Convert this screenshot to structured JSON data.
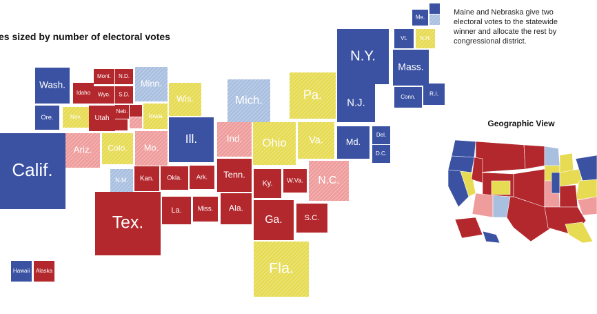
{
  "title": "es sized by number of electoral votes",
  "note": "Maine and Nebraska give two electoral votes to the statewide winner and allocate the rest by congressional district.",
  "inset_title": "Geographic View",
  "states": [
    {
      "label": "Calif.",
      "color": "#3b52a3",
      "hatched": false
    },
    {
      "label": "Wash.",
      "color": "#3b52a3",
      "hatched": false
    },
    {
      "label": "Ore.",
      "color": "#3b52a3",
      "hatched": false
    },
    {
      "label": "Idaho",
      "color": "#b3282d",
      "hatched": false
    },
    {
      "label": "Mont.",
      "color": "#b3282d",
      "hatched": false
    },
    {
      "label": "N.D.",
      "color": "#b3282d",
      "hatched": false
    },
    {
      "label": "Wyo.",
      "color": "#b3282d",
      "hatched": false
    },
    {
      "label": "S.D.",
      "color": "#b3282d",
      "hatched": false
    },
    {
      "label": "Minn.",
      "color": "#a9bfe0",
      "hatched": true
    },
    {
      "label": "Nev.",
      "color": "#e6db52",
      "hatched": true
    },
    {
      "label": "Utah",
      "color": "#b3282d",
      "hatched": false
    },
    {
      "label": "Neb.",
      "color": "#b3282d",
      "hatched": false
    },
    {
      "label": "Iowa",
      "color": "#e6db52",
      "hatched": true
    },
    {
      "label": "Ariz.",
      "color": "#ef9c9c",
      "hatched": true
    },
    {
      "label": "Colo.",
      "color": "#e6db52",
      "hatched": true
    },
    {
      "label": "Mo.",
      "color": "#ef9c9c",
      "hatched": true
    },
    {
      "label": "Wis.",
      "color": "#e6db52",
      "hatched": true
    },
    {
      "label": "Ill.",
      "color": "#3b52a3",
      "hatched": false
    },
    {
      "label": "Mich.",
      "color": "#a9bfe0",
      "hatched": true
    },
    {
      "label": "Ind.",
      "color": "#ef9c9c",
      "hatched": true
    },
    {
      "label": "Ohio",
      "color": "#e6db52",
      "hatched": true
    },
    {
      "label": "Pa.",
      "color": "#e6db52",
      "hatched": true
    },
    {
      "label": "Va.",
      "color": "#e6db52",
      "hatched": true
    },
    {
      "label": "N.Y.",
      "color": "#3b52a3",
      "hatched": false
    },
    {
      "label": "N.J.",
      "color": "#3b52a3",
      "hatched": false
    },
    {
      "label": "Md.",
      "color": "#3b52a3",
      "hatched": false
    },
    {
      "label": "Del.",
      "color": "#3b52a3",
      "hatched": false
    },
    {
      "label": "D.C.",
      "color": "#3b52a3",
      "hatched": false
    },
    {
      "label": "Mass.",
      "color": "#3b52a3",
      "hatched": false
    },
    {
      "label": "Vt.",
      "color": "#3b52a3",
      "hatched": false
    },
    {
      "label": "N.H.",
      "color": "#e6db52",
      "hatched": true
    },
    {
      "label": "Me.",
      "color": "#3b52a3",
      "hatched": false
    },
    {
      "label": "Conn.",
      "color": "#3b52a3",
      "hatched": false
    },
    {
      "label": "R.I.",
      "color": "#3b52a3",
      "hatched": false
    },
    {
      "label": "N.M.",
      "color": "#a9bfe0",
      "hatched": true
    },
    {
      "label": "Kan.",
      "color": "#b3282d",
      "hatched": false
    },
    {
      "label": "Okla.",
      "color": "#b3282d",
      "hatched": false
    },
    {
      "label": "Ark.",
      "color": "#b3282d",
      "hatched": false
    },
    {
      "label": "Tenn.",
      "color": "#b3282d",
      "hatched": false
    },
    {
      "label": "Ky.",
      "color": "#b3282d",
      "hatched": false
    },
    {
      "label": "W.Va.",
      "color": "#b3282d",
      "hatched": false
    },
    {
      "label": "N.C.",
      "color": "#ef9c9c",
      "hatched": true
    },
    {
      "label": "Tex.",
      "color": "#b3282d",
      "hatched": false
    },
    {
      "label": "La.",
      "color": "#b3282d",
      "hatched": false
    },
    {
      "label": "Miss.",
      "color": "#b3282d",
      "hatched": false
    },
    {
      "label": "Ala.",
      "color": "#b3282d",
      "hatched": false
    },
    {
      "label": "Ga.",
      "color": "#b3282d",
      "hatched": false
    },
    {
      "label": "S.C.",
      "color": "#b3282d",
      "hatched": false
    },
    {
      "label": "Fla.",
      "color": "#e6db52",
      "hatched": true
    },
    {
      "label": "Hawaii",
      "color": "#3b52a3",
      "hatched": false
    },
    {
      "label": "Alaska",
      "color": "#b3282d",
      "hatched": false
    }
  ]
}
